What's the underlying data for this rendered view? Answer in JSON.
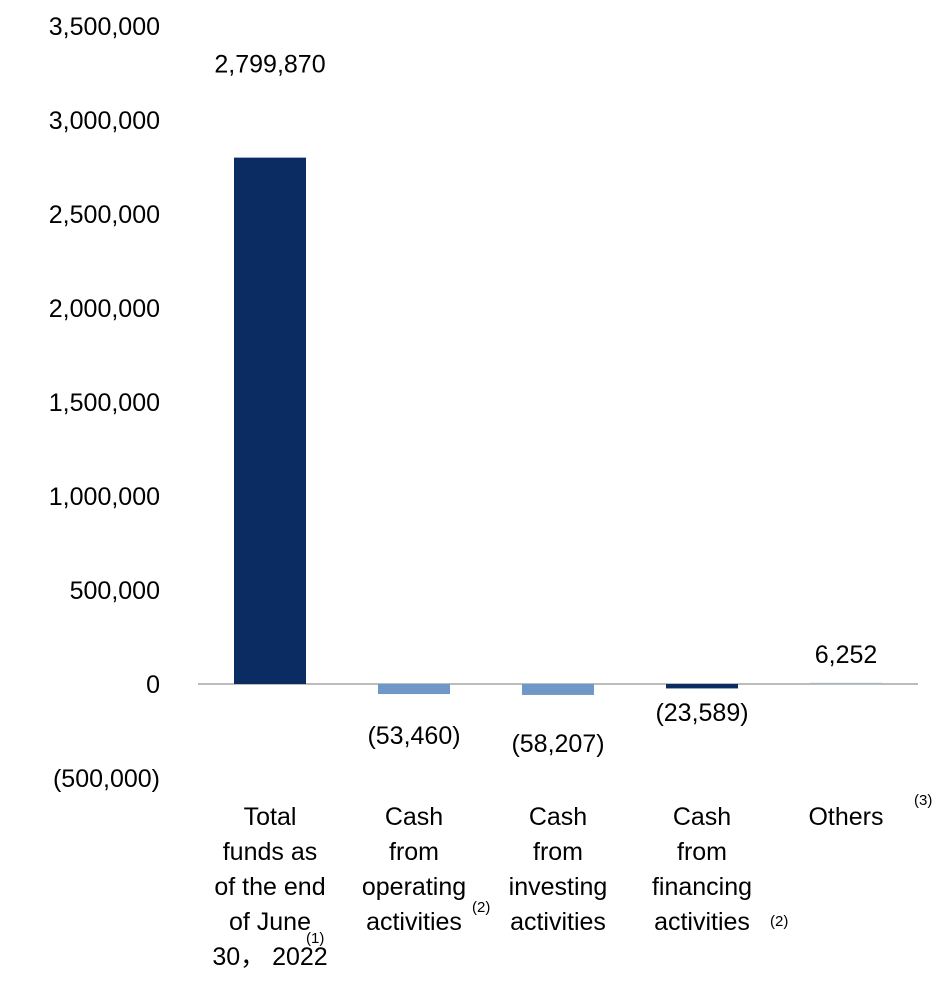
{
  "chart_data": {
    "type": "bar",
    "categories": [
      "Total funds as of the end of June 30, 2022",
      "Cash from operating activities",
      "Cash from investing activities",
      "Cash from financing activities",
      "Others"
    ],
    "category_lines": [
      [
        "Total",
        "funds as",
        "of the end",
        "of June",
        "30， 2022"
      ],
      [
        "Cash",
        "from",
        "operating",
        "activities"
      ],
      [
        "Cash",
        "from",
        "investing",
        "activities"
      ],
      [
        "Cash",
        "from",
        "financing",
        "activities"
      ],
      [
        "Others"
      ]
    ],
    "footnotes": [
      "(1)",
      "(2)",
      "",
      "(2)",
      "(3)"
    ],
    "values": [
      2799870,
      -53460,
      -58207,
      -23589,
      6252
    ],
    "data_labels": [
      "2,799,870",
      "(53,460)",
      "(58,207)",
      "(23,589)",
      "6,252"
    ],
    "colors": [
      "#0a2c63",
      "#6f98c8",
      "#6f98c8",
      "#0a2c63",
      "#a9b6c6"
    ],
    "ylim": [
      -500000,
      3500000
    ],
    "yticks": [
      3500000,
      3000000,
      2500000,
      2000000,
      1500000,
      1000000,
      500000,
      0,
      -500000
    ],
    "ytick_labels": [
      "3,500,000",
      "3,000,000",
      "2,500,000",
      "2,000,000",
      "1,500,000",
      "1,000,000",
      "500,000",
      "0",
      "(500,000)"
    ],
    "title": "",
    "xlabel": "",
    "ylabel": "",
    "grid": false,
    "legend": "none"
  }
}
